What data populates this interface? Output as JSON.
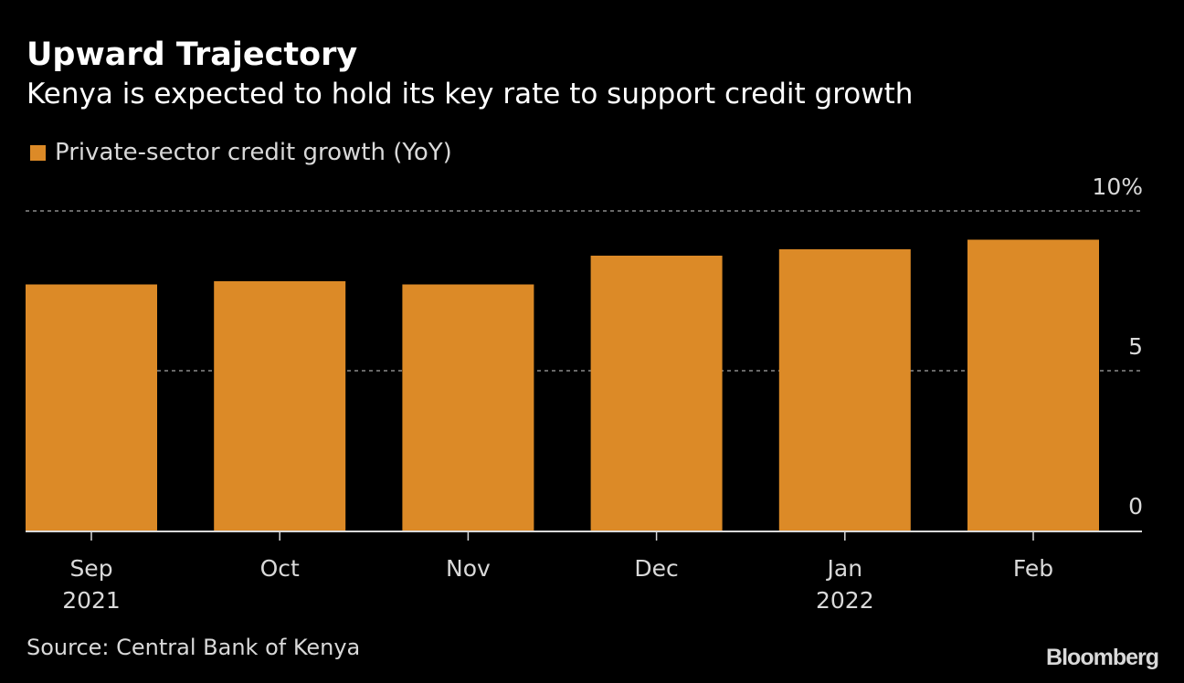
{
  "header": {
    "title": "Upward Trajectory",
    "subtitle": "Kenya is expected to hold its key rate to support credit growth"
  },
  "footer": {
    "source": "Source: Central Bank of Kenya",
    "brand": "Bloomberg"
  },
  "chart_data": {
    "type": "bar",
    "title": "Upward Trajectory",
    "subtitle": "Kenya is expected to hold its key rate to support credit growth",
    "categories": [
      "Sep",
      "Oct",
      "Nov",
      "Dec",
      "Jan",
      "Feb"
    ],
    "category_sublabels": [
      "2021",
      "",
      "",
      "",
      "2022",
      ""
    ],
    "series": [
      {
        "name": "Private-sector credit growth (YoY)",
        "color": "#DC8A27",
        "values": [
          7.7,
          7.8,
          7.7,
          8.6,
          8.8,
          9.1
        ]
      }
    ],
    "xlabel": "",
    "ylabel": "",
    "ylim": [
      0,
      10
    ],
    "yticks": [
      0,
      5,
      10
    ],
    "ytick_labels": [
      "0",
      "5",
      "10%"
    ],
    "y_axis_side": "right",
    "grid": true,
    "legend": "top-left",
    "source": "Source: Central Bank of Kenya"
  }
}
